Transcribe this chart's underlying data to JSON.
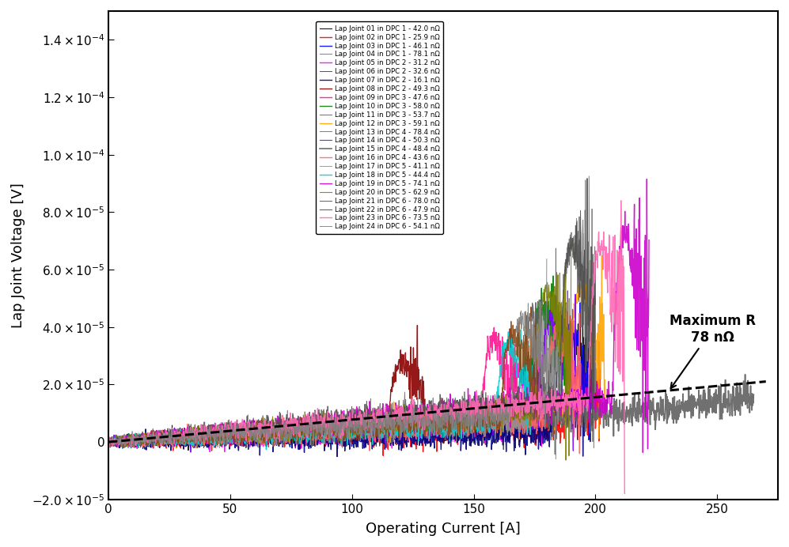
{
  "xlabel": "Operating Current [A]",
  "ylabel": "Lap Joint Voltage [V]",
  "xlim": [
    0,
    275
  ],
  "ylim": [
    -2e-05,
    0.00015
  ],
  "background_color": "#ffffff",
  "annotation_text": "Maximum R\n78 nΩ",
  "dashed_line_resistance": 7.8e-08,
  "joints": [
    {
      "label": "Lap Joint 01 in DPC 1 - 42.0 nΩ",
      "R": 4.2e-08,
      "color": "#000000",
      "lw": 0.8,
      "Iq": 200,
      "Imax": 200
    },
    {
      "label": "Lap Joint 02 in DPC 1 - 25.9 nΩ",
      "R": 2.59e-08,
      "color": "#ff0000",
      "lw": 1.0,
      "Iq": 202,
      "Imax": 202
    },
    {
      "label": "Lap Joint 03 in DPC 1 - 46.1 nΩ",
      "R": 4.61e-08,
      "color": "#0000ff",
      "lw": 1.0,
      "Iq": 198,
      "Imax": 198
    },
    {
      "label": "Lap Joint 04 in DPC 1 - 78.1 nΩ",
      "R": 7.81e-08,
      "color": "#808080",
      "lw": 0.8,
      "Iq": 200,
      "Imax": 200
    },
    {
      "label": "Lap Joint 05 in DPC 2 - 31.2 nΩ",
      "R": 3.12e-08,
      "color": "#ff00ff",
      "lw": 1.0,
      "Iq": 178,
      "Imax": 178
    },
    {
      "label": "Lap Joint 06 in DPC 2 - 32.6 nΩ",
      "R": 3.26e-08,
      "color": "#404040",
      "lw": 0.7,
      "Iq": 182,
      "Imax": 182
    },
    {
      "label": "Lap Joint 07 in DPC 2 - 16.1 nΩ",
      "R": 1.61e-08,
      "color": "#000080",
      "lw": 1.0,
      "Iq": 196,
      "Imax": 196
    },
    {
      "label": "Lap Joint 08 in DPC 2 - 49.3 nΩ",
      "R": 4.93e-08,
      "color": "#8B0000",
      "lw": 1.0,
      "Iq": 130,
      "Imax": 130
    },
    {
      "label": "Lap Joint 09 in DPC 3 - 47.6 nΩ",
      "R": 4.76e-08,
      "color": "#ff1493",
      "lw": 1.0,
      "Iq": 168,
      "Imax": 168
    },
    {
      "label": "Lap Joint 10 in DPC 3 - 58.0 nΩ",
      "R": 5.8e-08,
      "color": "#008000",
      "lw": 1.0,
      "Iq": 188,
      "Imax": 188
    },
    {
      "label": "Lap Joint 11 in DPC 3 - 53.7 nΩ",
      "R": 5.37e-08,
      "color": "#606060",
      "lw": 0.7,
      "Iq": 184,
      "Imax": 184
    },
    {
      "label": "Lap Joint 12 in DPC 3 - 59.1 nΩ",
      "R": 5.91e-08,
      "color": "#ffa500",
      "lw": 1.0,
      "Iq": 204,
      "Imax": 204
    },
    {
      "label": "Lap Joint 13 in DPC 4 - 78.4 nΩ",
      "R": 7.84e-08,
      "color": "#707070",
      "lw": 0.7,
      "Iq": 200,
      "Imax": 200
    },
    {
      "label": "Lap Joint 14 in DPC 4 - 50.3 nΩ",
      "R": 5.03e-08,
      "color": "#8000ff",
      "lw": 0.8,
      "Iq": 192,
      "Imax": 192
    },
    {
      "label": "Lap Joint 15 in DPC 4 - 48.4 nΩ",
      "R": 4.84e-08,
      "color": "#606060",
      "lw": 1.2,
      "Iq": 265,
      "Imax": 265
    },
    {
      "label": "Lap Joint 16 in DPC 4 - 43.6 nΩ",
      "R": 4.36e-08,
      "color": "#ff6666",
      "lw": 1.0,
      "Iq": 194,
      "Imax": 194
    },
    {
      "label": "Lap Joint 17 in DPC 5 - 41.1 nΩ",
      "R": 4.11e-08,
      "color": "#909090",
      "lw": 0.7,
      "Iq": 186,
      "Imax": 186
    },
    {
      "label": "Lap Joint 18 in DPC 5 - 44.4 nΩ",
      "R": 4.44e-08,
      "color": "#00ced1",
      "lw": 1.0,
      "Iq": 174,
      "Imax": 174
    },
    {
      "label": "Lap Joint 19 in DPC 5 - 74.1 nΩ",
      "R": 7.41e-08,
      "color": "#cc00cc",
      "lw": 1.0,
      "Iq": 222,
      "Imax": 222
    },
    {
      "label": "Lap Joint 20 in DPC 5 - 62.9 nΩ",
      "R": 6.29e-08,
      "color": "#808000",
      "lw": 0.8,
      "Iq": 190,
      "Imax": 190
    },
    {
      "label": "Lap Joint 21 in DPC 6 - 78.0 nΩ",
      "R": 7.8e-08,
      "color": "#505050",
      "lw": 0.7,
      "Iq": 200,
      "Imax": 200
    },
    {
      "label": "Lap Joint 22 in DPC 6 - 47.9 nΩ",
      "R": 4.79e-08,
      "color": "#8B4513",
      "lw": 0.8,
      "Iq": 176,
      "Imax": 176
    },
    {
      "label": "Lap Joint 23 in DPC 6 - 73.5 nΩ",
      "R": 7.35e-08,
      "color": "#ff69b4",
      "lw": 1.0,
      "Iq": 212,
      "Imax": 212
    },
    {
      "label": "Lap Joint 24 in DPC 6 - 54.1 nΩ",
      "R": 5.41e-08,
      "color": "#808080",
      "lw": 0.7,
      "Iq": 180,
      "Imax": 180
    }
  ],
  "noise_amplitude": 2.5e-06,
  "noise_seed": 42
}
